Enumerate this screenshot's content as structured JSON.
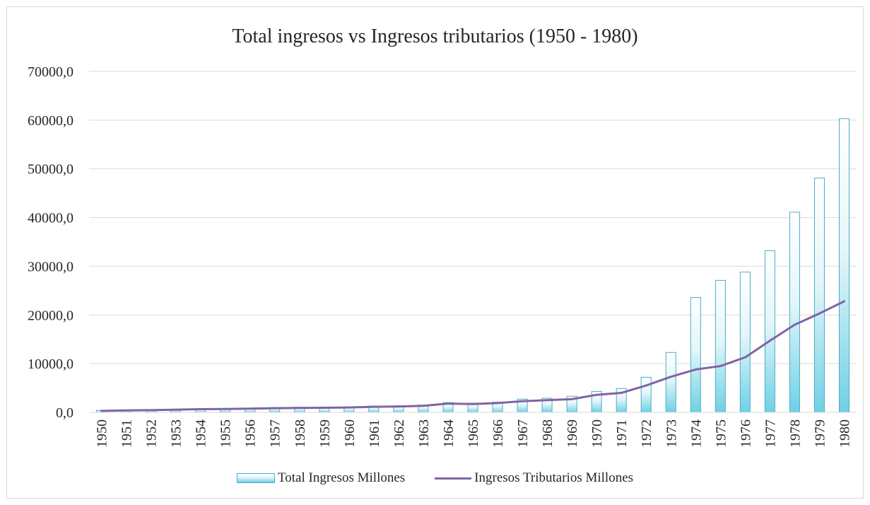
{
  "chart_data": {
    "type": "bar",
    "title": "Total ingresos vs Ingresos tributarios (1950 - 1980)",
    "categories": [
      "1950",
      "1951",
      "1952",
      "1953",
      "1954",
      "1955",
      "1956",
      "1957",
      "1958",
      "1959",
      "1960",
      "1961",
      "1962",
      "1963",
      "1964",
      "1965",
      "1966",
      "1967",
      "1968",
      "1969",
      "1970",
      "1971",
      "1972",
      "1973",
      "1974",
      "1975",
      "1976",
      "1977",
      "1978",
      "1979",
      "1980"
    ],
    "ylim": [
      0,
      70000
    ],
    "yticks": [
      "0,0",
      "10000,0",
      "20000,0",
      "30000,0",
      "40000,0",
      "50000,0",
      "60000,0",
      "70000,0"
    ],
    "grid": true,
    "legend_position": "bottom",
    "series": [
      {
        "name": "Total Ingresos Millones",
        "kind": "bar",
        "color": "#4bacc6",
        "values": [
          400,
          450,
          500,
          620,
          700,
          800,
          800,
          1000,
          1050,
          1050,
          1100,
          1300,
          1350,
          1500,
          2000,
          1900,
          2100,
          2700,
          2900,
          3300,
          4300,
          4900,
          7200,
          12300,
          23600,
          27100,
          28800,
          33200,
          41100,
          48100,
          60300
        ]
      },
      {
        "name": "Ingresos Tributarios Millones",
        "kind": "line",
        "color": "#8064a2",
        "values": [
          300,
          400,
          450,
          550,
          650,
          700,
          750,
          850,
          900,
          950,
          1000,
          1150,
          1200,
          1350,
          1800,
          1700,
          1900,
          2300,
          2500,
          2700,
          3600,
          4000,
          5500,
          7300,
          8800,
          9500,
          11300,
          14700,
          18000,
          20300,
          22800
        ]
      }
    ]
  }
}
